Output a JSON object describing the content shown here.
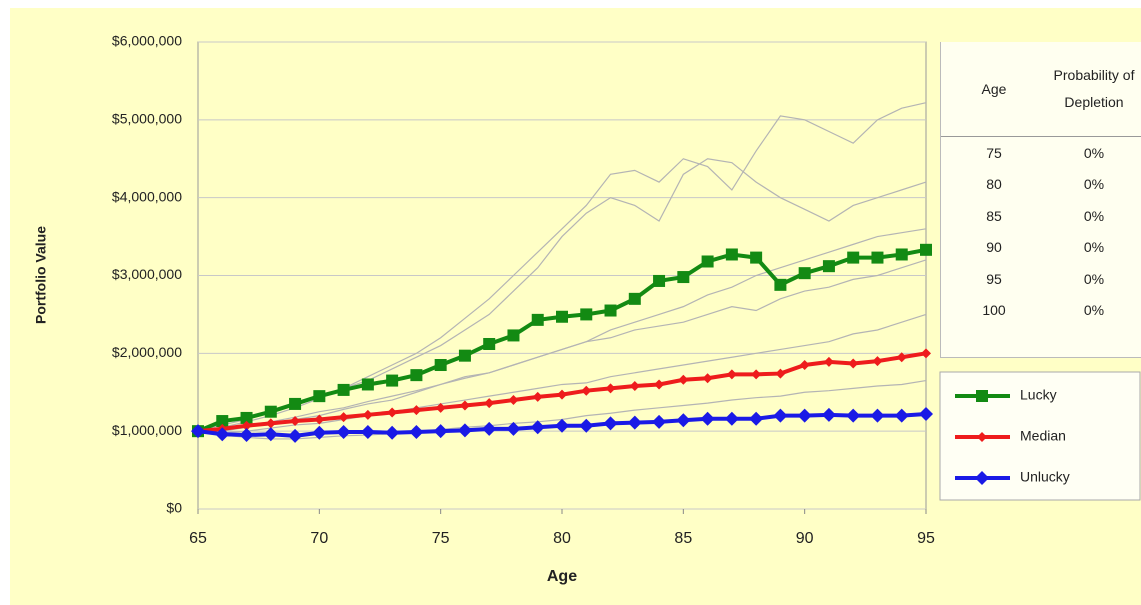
{
  "chart_data": {
    "type": "line",
    "y_label": "Portfolio Value",
    "x_label": "Age",
    "x": [
      65,
      66,
      67,
      68,
      69,
      70,
      71,
      72,
      73,
      74,
      75,
      76,
      77,
      78,
      79,
      80,
      81,
      82,
      83,
      84,
      85,
      86,
      87,
      88,
      89,
      90,
      91,
      92,
      93,
      94,
      95
    ],
    "xlim": [
      65,
      95
    ],
    "xticks": [
      65,
      70,
      75,
      80,
      85,
      90,
      95
    ],
    "ylim": [
      0,
      6000000
    ],
    "yticks": [
      {
        "value": 0,
        "label": "$0"
      },
      {
        "value": 1000000,
        "label": "$1,000,000"
      },
      {
        "value": 2000000,
        "label": "$2,000,000"
      },
      {
        "value": 3000000,
        "label": "$3,000,000"
      },
      {
        "value": 4000000,
        "label": "$4,000,000"
      },
      {
        "value": 5000000,
        "label": "$5,000,000"
      },
      {
        "value": 6000000,
        "label": "$6,000,000"
      }
    ],
    "grid": true,
    "series": [
      {
        "color": "#b4b4b4",
        "marker": "none",
        "values": [
          1000000,
          1050000,
          1120000,
          1200000,
          1300000,
          1420000,
          1550000,
          1700000,
          1850000,
          2000000,
          2200000,
          2450000,
          2700000,
          3000000,
          3300000,
          3600000,
          3900000,
          4300000,
          4350000,
          4200000,
          4500000,
          4400000,
          4100000,
          4600000,
          5050000,
          5000000,
          4850000,
          4700000,
          5000000,
          5150000,
          5220000
        ]
      },
      {
        "color": "#b4b4b4",
        "marker": "none",
        "values": [
          1000000,
          1080000,
          1150000,
          1250000,
          1350000,
          1450000,
          1550000,
          1650000,
          1800000,
          1950000,
          2100000,
          2300000,
          2500000,
          2800000,
          3100000,
          3500000,
          3800000,
          4000000,
          3900000,
          3700000,
          4300000,
          4500000,
          4450000,
          4200000,
          4000000,
          3850000,
          3700000,
          3900000,
          4000000,
          4100000,
          4200000
        ]
      },
      {
        "color": "#b4b4b4",
        "marker": "none",
        "values": [
          1000000,
          1000000,
          1050000,
          1100000,
          1150000,
          1200000,
          1280000,
          1350000,
          1400000,
          1500000,
          1600000,
          1700000,
          1750000,
          1850000,
          1950000,
          2050000,
          2150000,
          2200000,
          2300000,
          2350000,
          2400000,
          2500000,
          2600000,
          2550000,
          2700000,
          2800000,
          2850000,
          2950000,
          3000000,
          3100000,
          3200000
        ]
      },
      {
        "color": "#b4b4b4",
        "marker": "none",
        "values": [
          1000000,
          980000,
          1000000,
          1040000,
          1080000,
          1100000,
          1150000,
          1200000,
          1250000,
          1300000,
          1350000,
          1400000,
          1450000,
          1500000,
          1550000,
          1600000,
          1620000,
          1700000,
          1750000,
          1800000,
          1850000,
          1900000,
          1950000,
          2000000,
          2050000,
          2100000,
          2150000,
          2250000,
          2300000,
          2400000,
          2500000
        ]
      },
      {
        "color": "#b4b4b4",
        "marker": "none",
        "values": [
          1000000,
          950000,
          920000,
          900000,
          900000,
          920000,
          940000,
          950000,
          970000,
          1000000,
          1020000,
          1050000,
          1070000,
          1100000,
          1120000,
          1150000,
          1200000,
          1230000,
          1270000,
          1300000,
          1330000,
          1360000,
          1400000,
          1430000,
          1450000,
          1500000,
          1520000,
          1550000,
          1580000,
          1600000,
          1650000
        ]
      },
      {
        "color": "#b4b4b4",
        "marker": "none",
        "values": [
          1000000,
          1040000,
          1080000,
          1120000,
          1180000,
          1250000,
          1300000,
          1380000,
          1450000,
          1520000,
          1600000,
          1680000,
          1750000,
          1850000,
          1950000,
          2050000,
          2150000,
          2300000,
          2400000,
          2500000,
          2600000,
          2750000,
          2850000,
          3000000,
          3100000,
          3200000,
          3300000,
          3400000,
          3500000,
          3550000,
          3600000
        ]
      },
      {
        "name": "Lucky",
        "color": "#138a13",
        "marker": "square",
        "values": [
          1000000,
          1130000,
          1170000,
          1250000,
          1350000,
          1450000,
          1530000,
          1600000,
          1650000,
          1720000,
          1850000,
          1970000,
          2120000,
          2230000,
          2430000,
          2470000,
          2500000,
          2550000,
          2700000,
          2930000,
          2980000,
          3180000,
          3270000,
          3230000,
          2880000,
          3030000,
          3120000,
          3230000,
          3230000,
          3270000,
          3330000
        ]
      },
      {
        "name": "Median",
        "color": "#ee1c1c",
        "marker": "diamond-small",
        "values": [
          1000000,
          1030000,
          1070000,
          1100000,
          1130000,
          1150000,
          1180000,
          1210000,
          1240000,
          1270000,
          1300000,
          1330000,
          1360000,
          1400000,
          1440000,
          1470000,
          1520000,
          1550000,
          1580000,
          1600000,
          1660000,
          1680000,
          1730000,
          1730000,
          1740000,
          1850000,
          1890000,
          1870000,
          1900000,
          1950000,
          2000000
        ]
      },
      {
        "name": "Unlucky",
        "color": "#1a1ae6",
        "marker": "diamond",
        "values": [
          1000000,
          960000,
          950000,
          960000,
          940000,
          980000,
          990000,
          990000,
          980000,
          990000,
          1000000,
          1010000,
          1030000,
          1030000,
          1050000,
          1070000,
          1070000,
          1100000,
          1110000,
          1120000,
          1140000,
          1160000,
          1160000,
          1160000,
          1200000,
          1200000,
          1210000,
          1200000,
          1200000,
          1200000,
          1220000
        ]
      }
    ]
  },
  "table": {
    "columns": [
      "Age",
      "Probability of Depletion"
    ],
    "rows": [
      [
        "75",
        "0%"
      ],
      [
        "80",
        "0%"
      ],
      [
        "85",
        "0%"
      ],
      [
        "90",
        "0%"
      ],
      [
        "95",
        "0%"
      ],
      [
        "100",
        "0%"
      ]
    ]
  }
}
